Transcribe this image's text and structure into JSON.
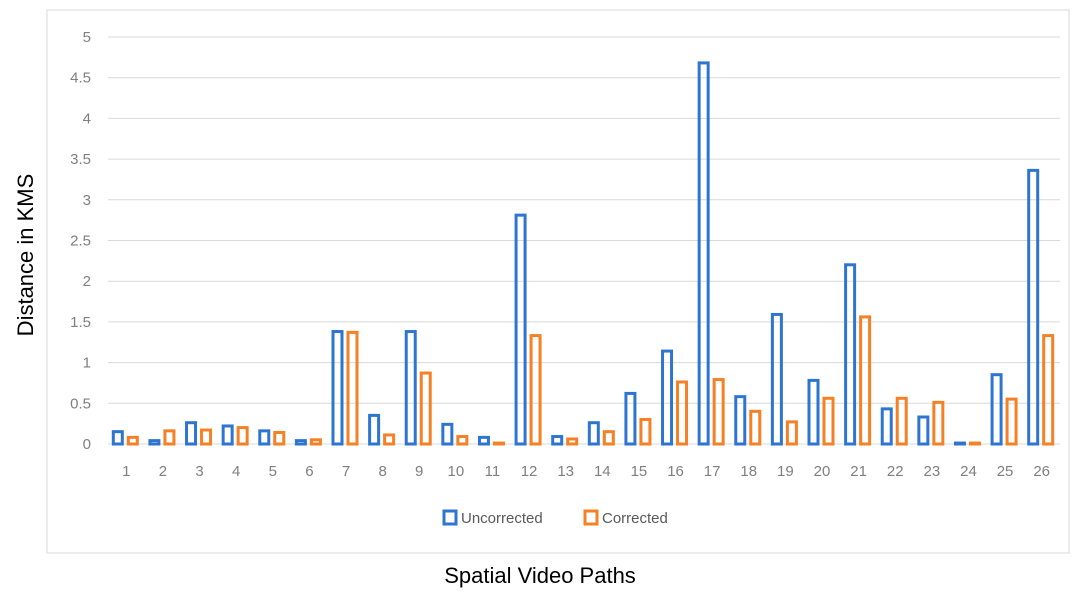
{
  "chart_data": {
    "type": "bar",
    "title": "",
    "xlabel": "Spatial Video Paths",
    "ylabel": "Distance in KMS",
    "ylim": [
      0,
      5
    ],
    "yticks": [
      "0",
      "0.5",
      "1",
      "1.5",
      "2",
      "2.5",
      "3",
      "3.5",
      "4",
      "4.5",
      "5"
    ],
    "grid": true,
    "legend_position": "bottom",
    "categories": [
      "1",
      "2",
      "3",
      "4",
      "5",
      "6",
      "7",
      "8",
      "9",
      "10",
      "11",
      "12",
      "13",
      "14",
      "15",
      "16",
      "17",
      "18",
      "19",
      "20",
      "21",
      "22",
      "23",
      "24",
      "25",
      "26"
    ],
    "series": [
      {
        "name": "Uncorrected",
        "color": "#2E75D1",
        "values": [
          0.17,
          0.06,
          0.28,
          0.24,
          0.18,
          0.06,
          1.4,
          0.37,
          1.4,
          0.26,
          0.1,
          2.83,
          0.11,
          0.28,
          0.64,
          1.16,
          4.7,
          0.6,
          1.61,
          0.8,
          2.22,
          0.45,
          0.35,
          0.03,
          0.87,
          3.38
        ]
      },
      {
        "name": "Corrected",
        "color": "#F58025",
        "values": [
          0.1,
          0.18,
          0.19,
          0.22,
          0.16,
          0.07,
          1.39,
          0.13,
          0.89,
          0.11,
          0.03,
          1.35,
          0.08,
          0.17,
          0.32,
          0.78,
          0.81,
          0.42,
          0.29,
          0.58,
          1.58,
          0.58,
          0.53,
          0.03,
          0.57,
          1.35
        ]
      }
    ]
  }
}
